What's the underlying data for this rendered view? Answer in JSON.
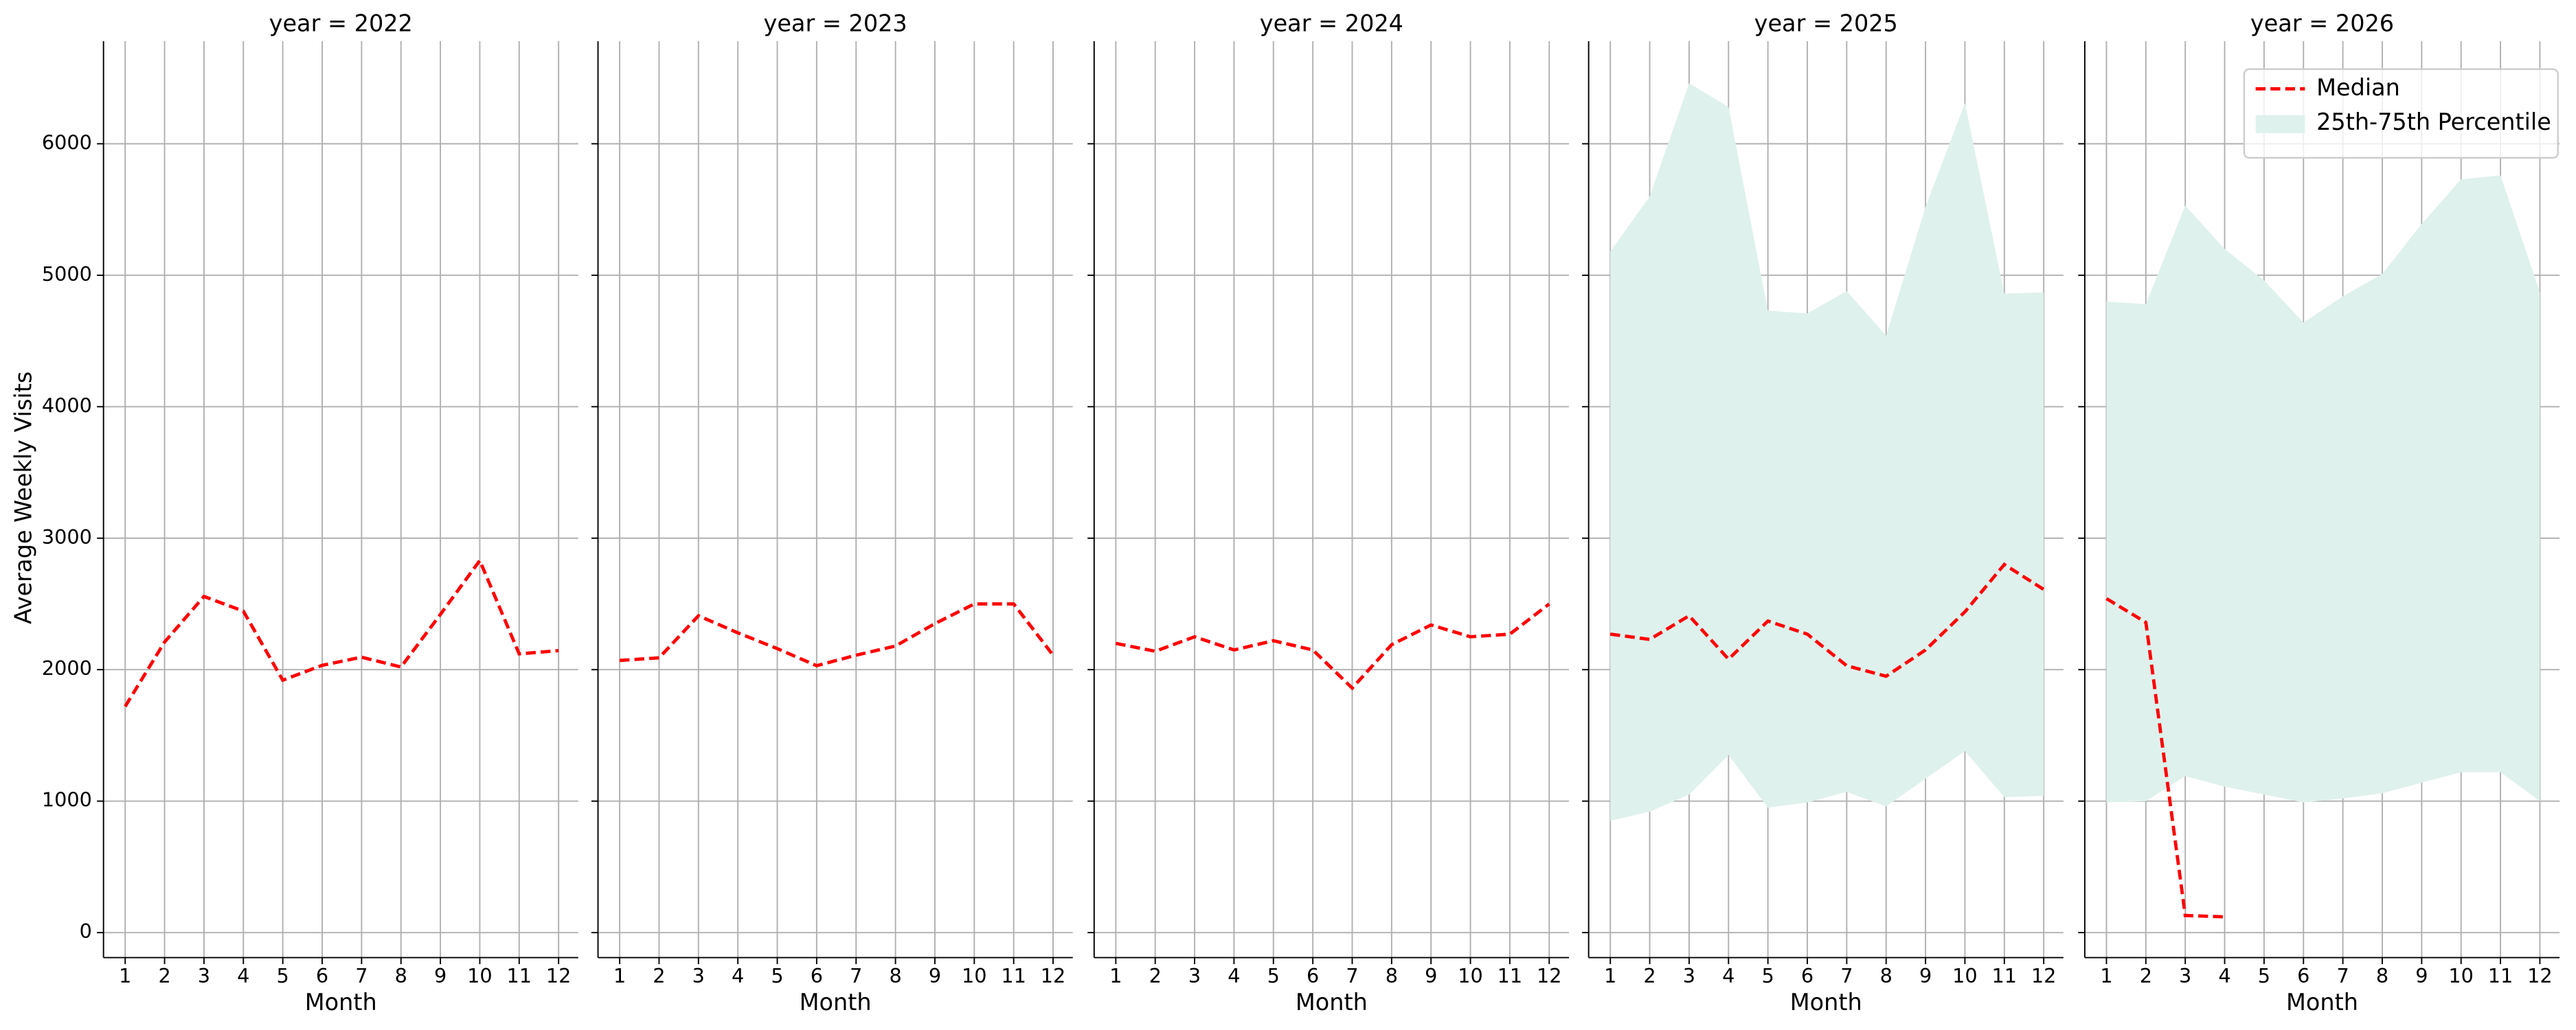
{
  "chart_data": [
    {
      "type": "line",
      "title": "year = 2022",
      "xlabel": "Month",
      "ylabel": "Average Weekly Visits",
      "x": [
        1,
        2,
        3,
        4,
        5,
        6,
        7,
        8,
        9,
        10,
        11,
        12
      ],
      "xlim": [
        0.45,
        12.5
      ],
      "ylim": [
        -190,
        6780
      ],
      "xticks": [
        1,
        2,
        3,
        4,
        5,
        6,
        7,
        8,
        9,
        10,
        11,
        12
      ],
      "yticks": [
        0,
        1000,
        2000,
        3000,
        4000,
        5000,
        6000
      ],
      "grid": true,
      "series": [
        {
          "color": "#ff0000",
          "values": [
            1720,
            2210,
            2557,
            2445,
            1920,
            2033,
            2095,
            2020,
            2420,
            2830,
            2120,
            2145
          ]
        }
      ]
    },
    {
      "type": "line",
      "title": "year = 2023",
      "xlabel": "Month",
      "x": [
        1,
        2,
        3,
        4,
        5,
        6,
        7,
        8,
        9,
        10,
        11,
        12
      ],
      "xlim": [
        0.45,
        12.5
      ],
      "ylim": [
        -190,
        6780
      ],
      "xticks": [
        1,
        2,
        3,
        4,
        5,
        6,
        7,
        8,
        9,
        10,
        11,
        12
      ],
      "yticks": [
        0,
        1000,
        2000,
        3000,
        4000,
        5000,
        6000
      ],
      "grid": true,
      "series": [
        {
          "color": "#ff0000",
          "values": [
            2070,
            2090,
            2410,
            2280,
            2160,
            2030,
            2110,
            2180,
            2350,
            2500,
            2500,
            2110
          ]
        }
      ]
    },
    {
      "type": "line",
      "title": "year = 2024",
      "xlabel": "Month",
      "x": [
        1,
        2,
        3,
        4,
        5,
        6,
        7,
        8,
        9,
        10,
        11,
        12
      ],
      "xlim": [
        0.45,
        12.5
      ],
      "ylim": [
        -190,
        6780
      ],
      "xticks": [
        1,
        2,
        3,
        4,
        5,
        6,
        7,
        8,
        9,
        10,
        11,
        12
      ],
      "yticks": [
        0,
        1000,
        2000,
        3000,
        4000,
        5000,
        6000
      ],
      "grid": true,
      "series": [
        {
          "color": "#ff0000",
          "values": [
            2200,
            2140,
            2250,
            2150,
            2220,
            2150,
            1860,
            2190,
            2340,
            2250,
            2270,
            2500
          ]
        }
      ]
    },
    {
      "type": "line",
      "title": "year = 2025",
      "xlabel": "Month",
      "x": [
        1,
        2,
        3,
        4,
        5,
        6,
        7,
        8,
        9,
        10,
        11,
        12
      ],
      "xlim": [
        0.45,
        12.5
      ],
      "ylim": [
        -190,
        6780
      ],
      "xticks": [
        1,
        2,
        3,
        4,
        5,
        6,
        7,
        8,
        9,
        10,
        11,
        12
      ],
      "yticks": [
        0,
        1000,
        2000,
        3000,
        4000,
        5000,
        6000
      ],
      "grid": true,
      "bands": [
        {
          "color": "#dff1ec",
          "lower": [
            850,
            920,
            1050,
            1350,
            950,
            990,
            1070,
            960,
            1170,
            1380,
            1030,
            1040
          ],
          "upper": [
            5180,
            5600,
            6460,
            6280,
            4730,
            4710,
            4880,
            4540,
            5520,
            6310,
            4860,
            4870
          ]
        }
      ],
      "series": [
        {
          "color": "#ff0000",
          "values": [
            2270,
            2230,
            2410,
            2080,
            2370,
            2270,
            2030,
            1950,
            2150,
            2440,
            2800,
            2610
          ]
        }
      ]
    },
    {
      "type": "line",
      "title": "year = 2026",
      "xlabel": "Month",
      "x": [
        1,
        2,
        3,
        4,
        5,
        6,
        7,
        8,
        9,
        10,
        11,
        12
      ],
      "xlim": [
        0.45,
        12.5
      ],
      "ylim": [
        -190,
        6780
      ],
      "xticks": [
        1,
        2,
        3,
        4,
        5,
        6,
        7,
        8,
        9,
        10,
        11,
        12
      ],
      "yticks": [
        0,
        1000,
        2000,
        3000,
        4000,
        5000,
        6000
      ],
      "grid": true,
      "legend": "upper right",
      "bands": [
        {
          "name": "25th-75th Percentile",
          "color": "#dff1ec",
          "lower": [
            990,
            1000,
            1190,
            1110,
            1050,
            990,
            1020,
            1060,
            1140,
            1220,
            1220,
            1000
          ],
          "upper": [
            4800,
            4780,
            5530,
            5200,
            4960,
            4640,
            4840,
            5010,
            5390,
            5730,
            5760,
            4870
          ]
        }
      ],
      "series": [
        {
          "name": "Median",
          "color": "#ff0000",
          "values": [
            2540,
            2360,
            130,
            120,
            null,
            null,
            null,
            null,
            null,
            null,
            null,
            null
          ]
        }
      ]
    }
  ]
}
